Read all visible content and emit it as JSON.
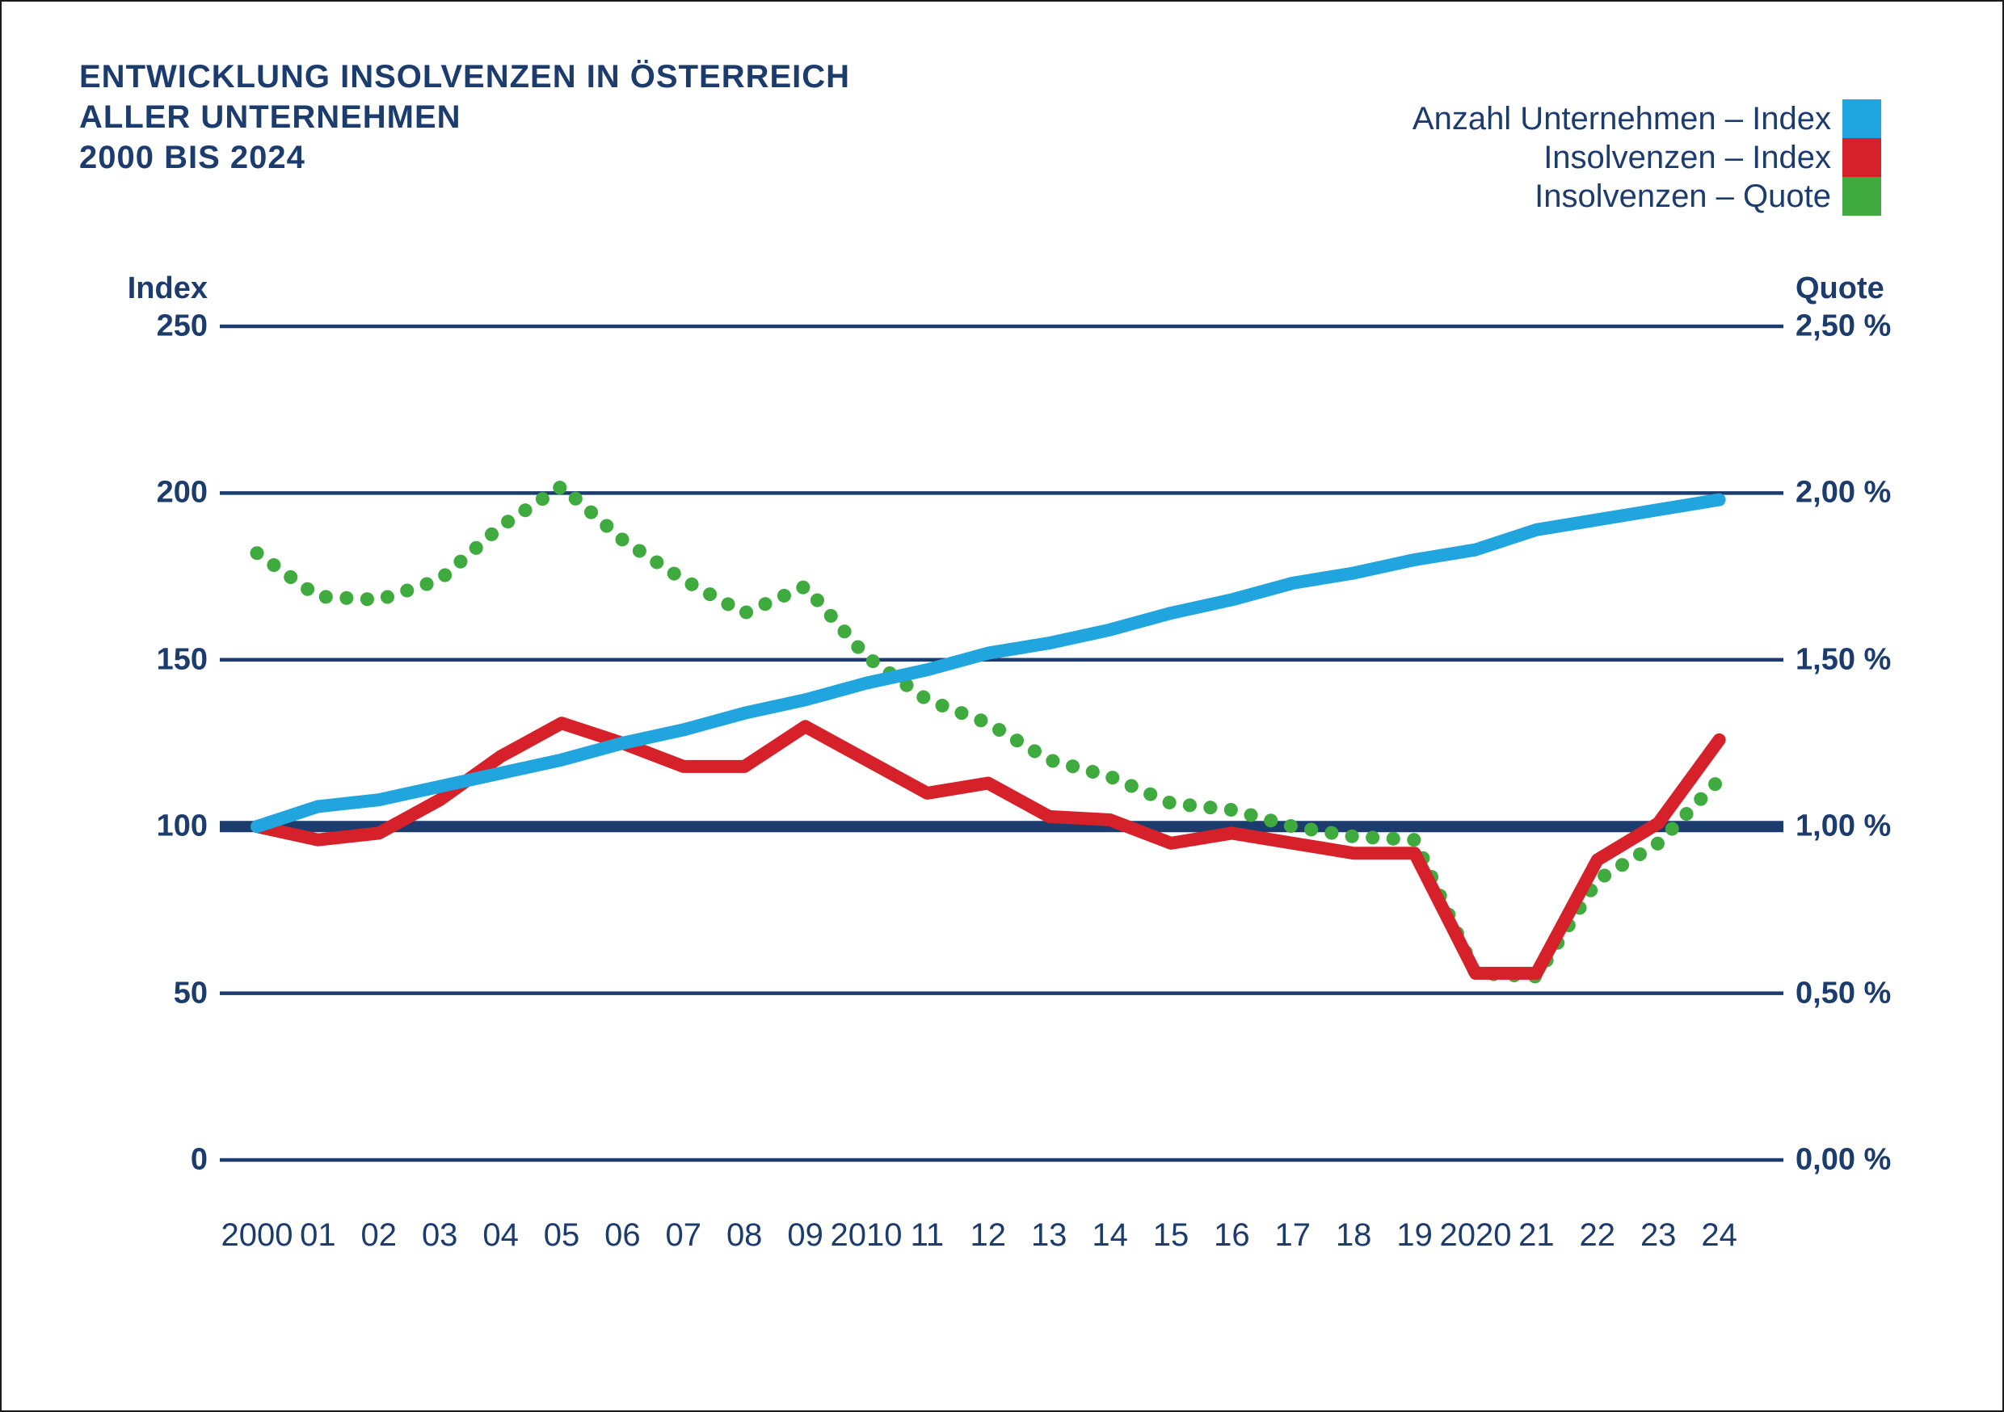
{
  "title": {
    "line1": "ENTWICKLUNG INSOLVENZEN IN ÖSTERREICH",
    "line2": "ALLER UNTERNEHMEN",
    "line3": "2000 BIS 2024"
  },
  "colors": {
    "navy": "#1C3C6E",
    "blue": "#21A5DE",
    "red": "#D6212B",
    "green": "#3FAB3F",
    "background": "#FFFFFF"
  },
  "legend": {
    "items": [
      {
        "label": "Anzahl Unternehmen – Index",
        "color": "#21A5DE"
      },
      {
        "label": "Insolvenzen – Index",
        "color": "#D6212B"
      },
      {
        "label": "Insolvenzen – Quote",
        "color": "#3FAB3F"
      }
    ]
  },
  "chart_data": {
    "type": "line",
    "title": "Entwicklung Insolvenzen in Österreich aller Unternehmen 2000 bis 2024",
    "grid": "horizontal",
    "legend_position": "top-right",
    "x_labels": [
      "2000",
      "01",
      "02",
      "03",
      "04",
      "05",
      "06",
      "07",
      "08",
      "09",
      "2010",
      "11",
      "12",
      "13",
      "14",
      "15",
      "16",
      "17",
      "18",
      "19",
      "2020",
      "21",
      "22",
      "23",
      "24"
    ],
    "left_axis": {
      "title": "Index",
      "range": [
        0,
        250
      ],
      "emphasized_value": 100,
      "ticks": [
        {
          "label": "250",
          "value": 250
        },
        {
          "label": "200",
          "value": 200
        },
        {
          "label": "150",
          "value": 150
        },
        {
          "label": "100",
          "value": 100
        },
        {
          "label": "50",
          "value": 50
        },
        {
          "label": "0",
          "value": 0
        }
      ]
    },
    "right_axis": {
      "title": "Quote",
      "range": [
        0,
        2.5
      ],
      "ticks": [
        {
          "label": "2,50 %",
          "value": 2.5
        },
        {
          "label": "2,00 %",
          "value": 2.0
        },
        {
          "label": "1,50 %",
          "value": 1.5
        },
        {
          "label": "1,00 %",
          "value": 1.0
        },
        {
          "label": "0,50 %",
          "value": 0.5
        },
        {
          "label": "0,00 %",
          "value": 0.0
        }
      ]
    },
    "series": [
      {
        "name": "Anzahl Unternehmen – Index",
        "axis": "left",
        "style": "solid",
        "color": "#21A5DE",
        "values": [
          100,
          106,
          108,
          112,
          116,
          120,
          125,
          129,
          134,
          138,
          143,
          147,
          152,
          155,
          159,
          164,
          168,
          173,
          176,
          180,
          183,
          189,
          192,
          195,
          198
        ]
      },
      {
        "name": "Insolvenzen – Index",
        "axis": "left",
        "style": "solid",
        "color": "#D6212B",
        "values": [
          100,
          96,
          98,
          108,
          121,
          131,
          125,
          118,
          118,
          130,
          120,
          110,
          113,
          103,
          102,
          95,
          98,
          95,
          92,
          92,
          56,
          56,
          90,
          101,
          126
        ]
      },
      {
        "name": "Insolvenzen – Quote",
        "axis": "right",
        "style": "dotted",
        "color": "#3FAB3F",
        "values": [
          1.82,
          1.69,
          1.68,
          1.74,
          1.9,
          2.02,
          1.86,
          1.74,
          1.64,
          1.72,
          1.51,
          1.38,
          1.31,
          1.2,
          1.15,
          1.07,
          1.05,
          1.0,
          0.97,
          0.96,
          0.56,
          0.55,
          0.84,
          0.95,
          1.14
        ]
      }
    ]
  }
}
